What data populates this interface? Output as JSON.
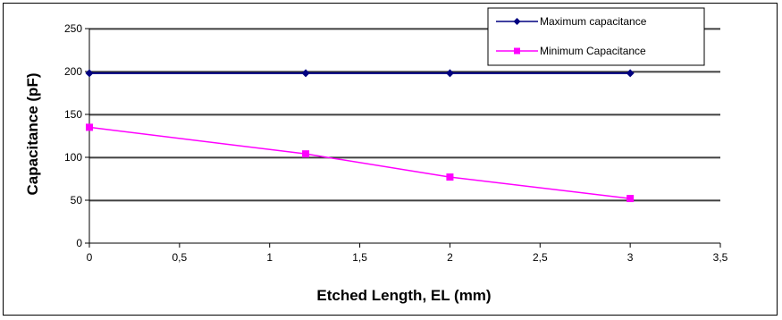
{
  "chart_data": {
    "type": "line",
    "title": "",
    "xlabel": "Etched Length, EL (mm)",
    "ylabel": "Capacitance (pF)",
    "xlim": [
      0,
      3.5
    ],
    "ylim": [
      0,
      250
    ],
    "x_ticks": [
      "0",
      "0,5",
      "1",
      "1,5",
      "2",
      "2,5",
      "3",
      "3,5"
    ],
    "y_ticks": [
      "0",
      "50",
      "100",
      "150",
      "200",
      "250"
    ],
    "grid": "horizontal",
    "legend_position": "top-right",
    "series": [
      {
        "name": "Maximum capacitance",
        "color": "#000080",
        "marker": "diamond",
        "x": [
          0,
          1.2,
          2,
          3
        ],
        "y": [
          198,
          198,
          198,
          198
        ]
      },
      {
        "name": "Minimum Capacitance",
        "color": "#ff00ff",
        "marker": "square",
        "x": [
          0,
          1.2,
          2,
          3
        ],
        "y": [
          135,
          104,
          77,
          52
        ]
      }
    ]
  }
}
